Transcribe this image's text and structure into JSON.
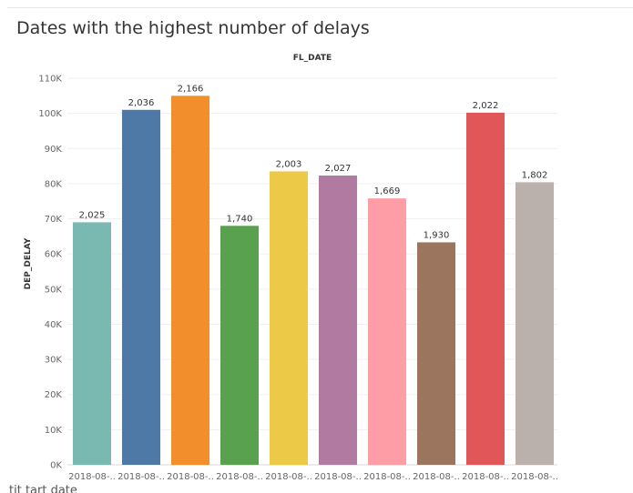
{
  "title": "Dates with the highest number of delays",
  "bottom_fragment": "tit  tart date",
  "chart_data": {
    "type": "bar",
    "title": "Dates with the highest number of delays",
    "column_header": "FL_DATE",
    "xlabel": "",
    "ylabel": "DEP_DELAY",
    "ylim": [
      0,
      110000
    ],
    "yticks": [
      {
        "value": 0,
        "label": "0K"
      },
      {
        "value": 10000,
        "label": "10K"
      },
      {
        "value": 20000,
        "label": "20K"
      },
      {
        "value": 30000,
        "label": "30K"
      },
      {
        "value": 40000,
        "label": "40K"
      },
      {
        "value": 50000,
        "label": "50K"
      },
      {
        "value": 60000,
        "label": "60K"
      },
      {
        "value": 70000,
        "label": "70K"
      },
      {
        "value": 80000,
        "label": "80K"
      },
      {
        "value": 90000,
        "label": "90K"
      },
      {
        "value": 100000,
        "label": "100K"
      },
      {
        "value": 110000,
        "label": "110K"
      }
    ],
    "grid": true,
    "legend": "none",
    "categories": [
      "2018-08-..",
      "2018-08-..",
      "2018-08-..",
      "2018-08-..",
      "2018-08-..",
      "2018-08-..",
      "2018-08-..",
      "2018-08-..",
      "2018-08-..",
      "2018-08-.."
    ],
    "values": [
      69000,
      101000,
      105000,
      68000,
      83500,
      82300,
      75800,
      63300,
      100200,
      80400
    ],
    "data_labels": [
      "2,025",
      "2,036",
      "2,166",
      "1,740",
      "2,003",
      "2,027",
      "1,669",
      "1,930",
      "2,022",
      "1,802"
    ],
    "colors": [
      "#7ab8b2",
      "#4e79a7",
      "#f28e2b",
      "#59a14f",
      "#edc948",
      "#b07aa1",
      "#ff9da7",
      "#9c755f",
      "#e15759",
      "#bab0ac"
    ]
  }
}
